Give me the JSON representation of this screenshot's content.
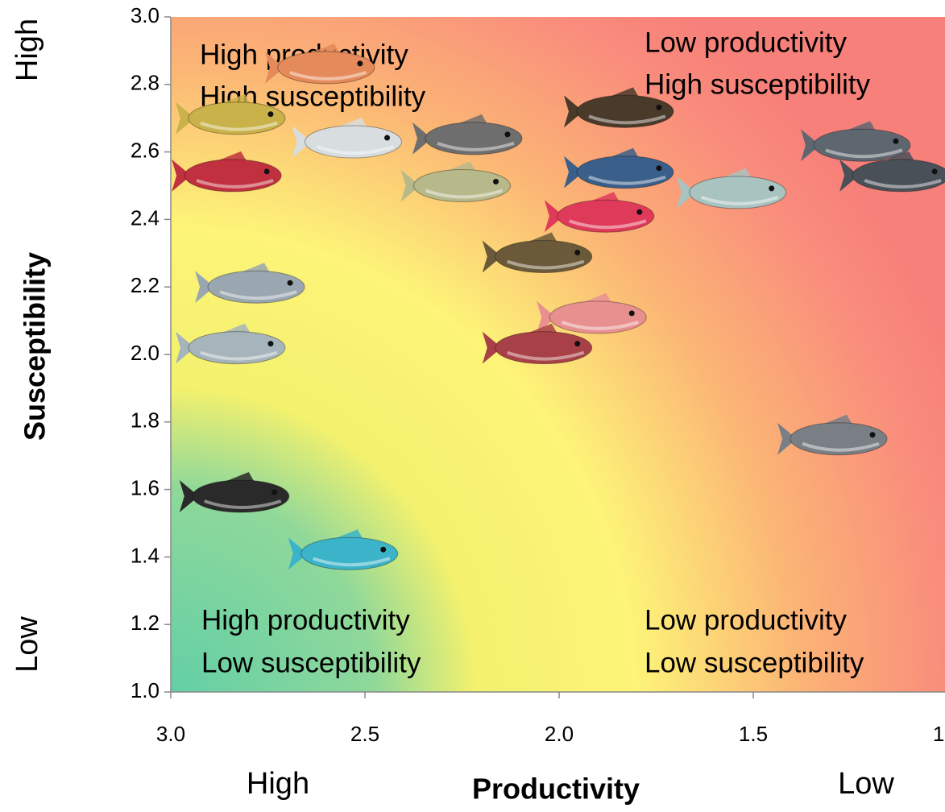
{
  "chart_data": {
    "type": "scatter",
    "x_title": "Productivity",
    "y_title": "Susceptibility",
    "x_end_labels": [
      "High",
      "Low"
    ],
    "y_end_labels": [
      "Low",
      "High"
    ],
    "annotations": [
      "High productivity",
      "High susceptibility",
      "Low productivity",
      "High susceptibility",
      "High productivity",
      "Low susceptibility",
      "Low productivity",
      "Low susceptibility"
    ],
    "xlim": [
      3.0,
      1.0
    ],
    "ylim": [
      1.0,
      3.0
    ],
    "xticks": [
      {
        "value": 3,
        "label": "3.0"
      },
      2.5,
      {
        "value": 2,
        "label": "2.0"
      },
      1.5,
      {
        "value": 1,
        "label": "1.0"
      }
    ],
    "yticks": [
      {
        "value": 1,
        "label": "1.0"
      },
      1.2,
      1.4,
      1.6,
      1.8,
      {
        "value": 2,
        "label": "2.0"
      },
      2.2,
      2.4,
      2.6,
      2.8,
      {
        "value": 3,
        "label": "3.0"
      }
    ],
    "x": [
      2.6,
      2.83,
      2.53,
      2.84,
      2.22,
      2.25,
      1.83,
      1.83,
      1.88,
      1.54,
      1.22,
      1.12,
      2.04,
      2.78,
      2.83,
      1.9,
      2.04,
      1.28,
      2.82,
      2.54
    ],
    "values": [
      2.85,
      2.7,
      2.63,
      2.53,
      2.64,
      2.5,
      2.72,
      2.54,
      2.41,
      2.48,
      2.62,
      2.53,
      2.29,
      2.2,
      2.02,
      2.11,
      2.02,
      1.75,
      1.58,
      1.41
    ],
    "colors": [
      "#e58a5a",
      "#c9b24a",
      "#d8dde0",
      "#c0303e",
      "#6e6e6e",
      "#b7b98a",
      "#4a3a2a",
      "#3a5f8a",
      "#e03a5a",
      "#a9c3c0",
      "#5e6670",
      "#4a5058",
      "#6b5a3a",
      "#9aa6b0",
      "#a6b4bc",
      "#e89090",
      "#a84048",
      "#7a7f86",
      "#2a2a2a",
      "#3bb3c9"
    ]
  }
}
